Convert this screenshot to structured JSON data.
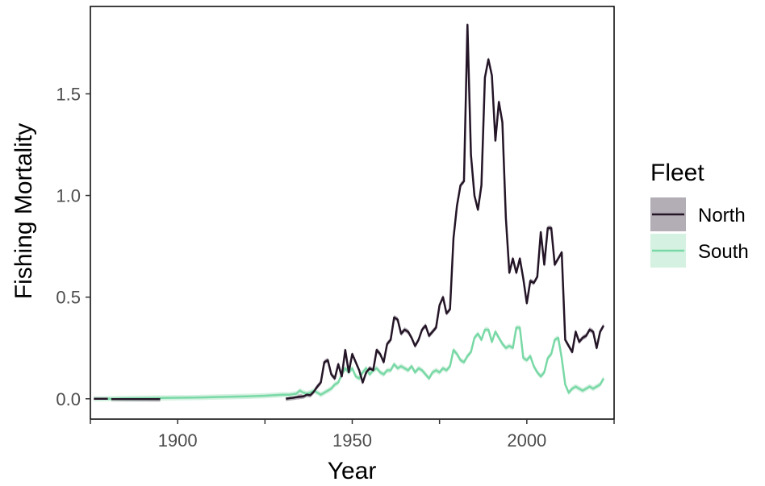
{
  "chart_data": {
    "type": "line",
    "xlabel": "Year",
    "ylabel": "Fishing Mortality",
    "xlim": [
      1875,
      2025
    ],
    "ylim": [
      -0.1,
      1.93
    ],
    "x_ticks": [
      1900,
      1950,
      2000
    ],
    "x_minor_ticks": [
      1875,
      1925,
      1975,
      2025
    ],
    "y_ticks": [
      0.0,
      0.5,
      1.0,
      1.5
    ],
    "grid": false,
    "legend": {
      "title": "Fleet",
      "position": "right"
    },
    "series": [
      {
        "name": "North",
        "color": "#241527",
        "band_color": "#b3adb5",
        "band_halfwidth": 0.012,
        "segments": [
          {
            "x": [
              1876,
              1880
            ],
            "y": [
              0.0,
              0.0
            ]
          },
          {
            "x": [
              1881,
              1895
            ],
            "y": [
              -0.002,
              -0.002
            ]
          },
          {
            "x": [
              1931,
              1932,
              1933,
              1934,
              1935,
              1936,
              1937,
              1938,
              1939,
              1940,
              1941,
              1942,
              1943,
              1944,
              1945,
              1946,
              1947,
              1948,
              1949,
              1950,
              1951,
              1952,
              1953,
              1954,
              1955,
              1956,
              1957,
              1958,
              1959,
              1960,
              1961,
              1962,
              1963,
              1964,
              1965,
              1966,
              1967,
              1968,
              1969,
              1970,
              1971,
              1972,
              1973,
              1974,
              1975,
              1976,
              1977,
              1978,
              1979,
              1980,
              1981,
              1982,
              1983,
              1984,
              1985,
              1986,
              1987,
              1988,
              1989,
              1990,
              1991,
              1992,
              1993,
              1994,
              1995,
              1996,
              1997,
              1998,
              1999,
              2000,
              2001,
              2002,
              2003,
              2004,
              2005,
              2006,
              2007,
              2008,
              2009,
              2010,
              2011,
              2012,
              2013,
              2014,
              2015,
              2016,
              2017,
              2018,
              2019,
              2020,
              2021,
              2022
            ],
            "y": [
              0.0,
              0.003,
              0.005,
              0.008,
              0.01,
              0.012,
              0.02,
              0.018,
              0.035,
              0.06,
              0.08,
              0.18,
              0.19,
              0.12,
              0.1,
              0.17,
              0.11,
              0.24,
              0.13,
              0.22,
              0.18,
              0.14,
              0.08,
              0.13,
              0.15,
              0.14,
              0.24,
              0.22,
              0.18,
              0.27,
              0.29,
              0.4,
              0.39,
              0.32,
              0.34,
              0.33,
              0.3,
              0.26,
              0.29,
              0.34,
              0.36,
              0.31,
              0.33,
              0.35,
              0.46,
              0.5,
              0.42,
              0.44,
              0.79,
              0.95,
              1.05,
              1.07,
              1.84,
              1.2,
              1.0,
              0.93,
              1.05,
              1.58,
              1.67,
              1.59,
              1.27,
              1.46,
              1.36,
              0.89,
              0.62,
              0.69,
              0.62,
              0.69,
              0.59,
              0.47,
              0.58,
              0.57,
              0.6,
              0.82,
              0.66,
              0.84,
              0.84,
              0.66,
              0.69,
              0.72,
              0.29,
              0.26,
              0.23,
              0.33,
              0.28,
              0.3,
              0.31,
              0.34,
              0.33,
              0.25,
              0.33,
              0.36
            ]
          }
        ]
      },
      {
        "name": "South",
        "color": "#79d9a6",
        "band_color": "#d5f1e1",
        "band_halfwidth": 0.013,
        "segments": [
          {
            "x": [
              1876,
              1880,
              1885,
              1890,
              1895,
              1900,
              1905,
              1910,
              1915,
              1920,
              1925,
              1930,
              1932,
              1934,
              1935,
              1936,
              1937,
              1938,
              1939,
              1940,
              1941,
              1942,
              1943,
              1944,
              1945,
              1946,
              1947,
              1948,
              1949,
              1950,
              1951,
              1952,
              1953,
              1954,
              1955,
              1956,
              1957,
              1958,
              1959,
              1960,
              1961,
              1962,
              1963,
              1964,
              1965,
              1966,
              1967,
              1968,
              1969,
              1970,
              1971,
              1972,
              1973,
              1974,
              1975,
              1976,
              1977,
              1978,
              1979,
              1980,
              1981,
              1982,
              1983,
              1984,
              1985,
              1986,
              1987,
              1988,
              1989,
              1990,
              1991,
              1992,
              1993,
              1994,
              1995,
              1996,
              1997,
              1998,
              1999,
              2000,
              2001,
              2002,
              2003,
              2004,
              2005,
              2006,
              2007,
              2008,
              2009,
              2010,
              2011,
              2012,
              2013,
              2014,
              2015,
              2016,
              2017,
              2018,
              2019,
              2020,
              2021,
              2022
            ],
            "y": [
              0.0,
              0.0,
              0.002,
              0.003,
              0.004,
              0.005,
              0.006,
              0.008,
              0.01,
              0.012,
              0.015,
              0.02,
              0.02,
              0.025,
              0.04,
              0.03,
              0.025,
              0.03,
              0.04,
              0.03,
              0.02,
              0.03,
              0.04,
              0.05,
              0.07,
              0.08,
              0.12,
              0.15,
              0.13,
              0.15,
              0.11,
              0.1,
              0.13,
              0.15,
              0.12,
              0.14,
              0.15,
              0.13,
              0.12,
              0.14,
              0.14,
              0.17,
              0.15,
              0.16,
              0.15,
              0.14,
              0.16,
              0.13,
              0.15,
              0.14,
              0.12,
              0.1,
              0.13,
              0.14,
              0.13,
              0.15,
              0.14,
              0.16,
              0.24,
              0.22,
              0.19,
              0.18,
              0.21,
              0.23,
              0.3,
              0.32,
              0.29,
              0.34,
              0.34,
              0.28,
              0.33,
              0.3,
              0.27,
              0.25,
              0.26,
              0.25,
              0.35,
              0.35,
              0.2,
              0.19,
              0.21,
              0.16,
              0.13,
              0.11,
              0.13,
              0.2,
              0.22,
              0.29,
              0.3,
              0.2,
              0.07,
              0.03,
              0.05,
              0.06,
              0.05,
              0.04,
              0.05,
              0.06,
              0.05,
              0.06,
              0.07,
              0.1
            ]
          }
        ]
      }
    ]
  }
}
